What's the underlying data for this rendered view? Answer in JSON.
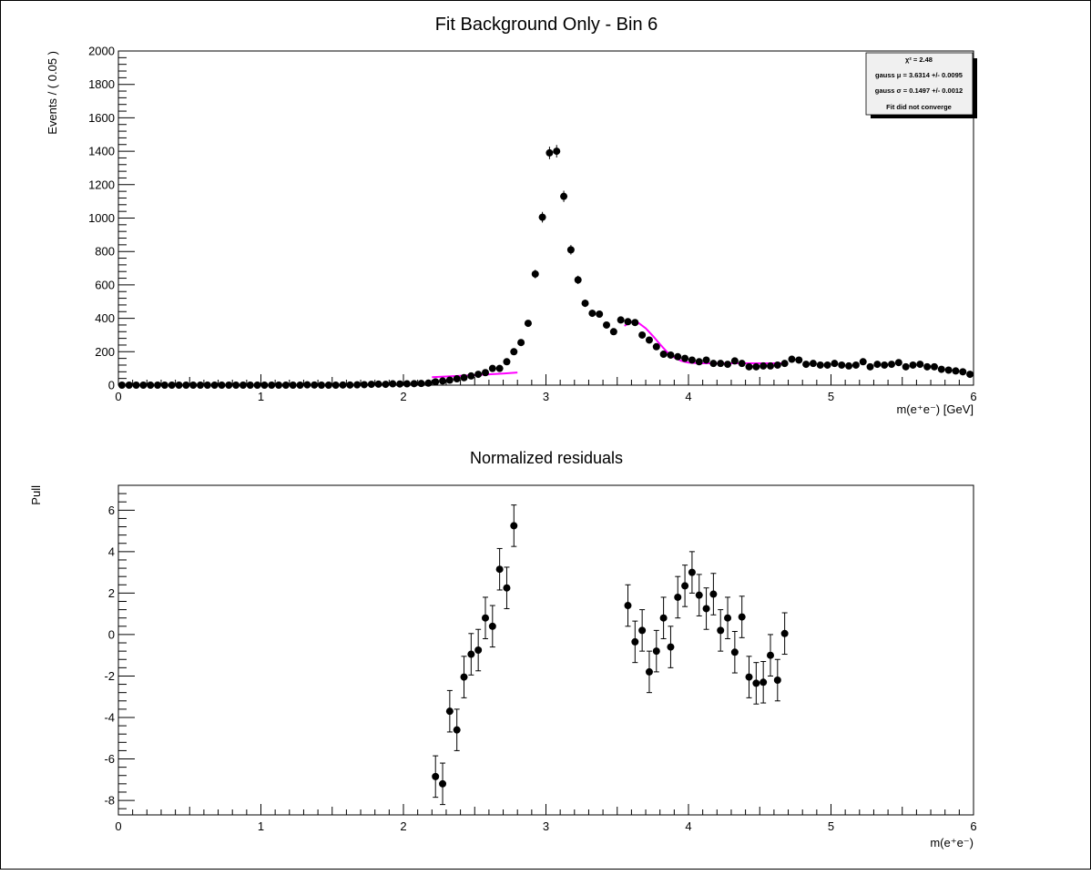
{
  "chart_data": [
    {
      "type": "scatter",
      "title": "Fit Background Only - Bin 6",
      "xlabel": "m(e⁺e⁻) [GeV]",
      "ylabel": "Events / ( 0.05 )",
      "xlim": [
        0,
        6
      ],
      "ylim": [
        0,
        2000
      ],
      "x_ticks": [
        "0",
        "1",
        "2",
        "3",
        "4",
        "5",
        "6"
      ],
      "y_ticks": [
        "0",
        "200",
        "400",
        "600",
        "800",
        "1000",
        "1200",
        "1400",
        "1600",
        "1800",
        "2000"
      ],
      "grid": false,
      "marker_color": "#000000",
      "fit_color": "#ff00ff",
      "series": [
        {
          "values": [
            [
              0.025,
              0
            ],
            [
              0.075,
              0
            ],
            [
              0.125,
              0
            ],
            [
              0.175,
              0
            ],
            [
              0.225,
              0
            ],
            [
              0.275,
              0
            ],
            [
              0.325,
              0
            ],
            [
              0.375,
              0
            ],
            [
              0.425,
              0
            ],
            [
              0.475,
              0
            ],
            [
              0.525,
              0
            ],
            [
              0.575,
              0
            ],
            [
              0.625,
              0
            ],
            [
              0.675,
              0
            ],
            [
              0.725,
              0
            ],
            [
              0.775,
              0
            ],
            [
              0.825,
              0
            ],
            [
              0.875,
              0
            ],
            [
              0.925,
              0
            ],
            [
              0.975,
              0
            ],
            [
              1.025,
              0
            ],
            [
              1.075,
              0
            ],
            [
              1.125,
              0
            ],
            [
              1.175,
              0
            ],
            [
              1.225,
              0
            ],
            [
              1.275,
              0
            ],
            [
              1.325,
              2
            ],
            [
              1.375,
              1
            ],
            [
              1.425,
              0
            ],
            [
              1.475,
              0
            ],
            [
              1.525,
              0
            ],
            [
              1.575,
              1
            ],
            [
              1.625,
              1
            ],
            [
              1.675,
              2
            ],
            [
              1.725,
              3
            ],
            [
              1.775,
              5
            ],
            [
              1.825,
              6
            ],
            [
              1.875,
              5
            ],
            [
              1.925,
              8
            ],
            [
              1.975,
              7
            ],
            [
              2.025,
              8
            ],
            [
              2.075,
              9
            ],
            [
              2.125,
              10
            ],
            [
              2.175,
              12
            ],
            [
              2.225,
              20
            ],
            [
              2.275,
              25
            ],
            [
              2.325,
              30
            ],
            [
              2.375,
              38
            ],
            [
              2.425,
              45
            ],
            [
              2.475,
              55
            ],
            [
              2.525,
              65
            ],
            [
              2.575,
              75
            ],
            [
              2.625,
              100
            ],
            [
              2.675,
              100
            ],
            [
              2.725,
              140
            ],
            [
              2.775,
              200
            ],
            [
              2.825,
              255
            ],
            [
              2.875,
              370
            ],
            [
              2.925,
              665
            ],
            [
              2.975,
              1005
            ],
            [
              3.025,
              1390
            ],
            [
              3.075,
              1400
            ],
            [
              3.125,
              1130
            ],
            [
              3.175,
              810
            ],
            [
              3.225,
              630
            ],
            [
              3.275,
              490
            ],
            [
              3.325,
              430
            ],
            [
              3.375,
              425
            ],
            [
              3.425,
              360
            ],
            [
              3.475,
              320
            ],
            [
              3.525,
              390
            ],
            [
              3.575,
              380
            ],
            [
              3.625,
              375
            ],
            [
              3.675,
              300
            ],
            [
              3.725,
              270
            ],
            [
              3.775,
              230
            ],
            [
              3.825,
              185
            ],
            [
              3.875,
              180
            ],
            [
              3.925,
              170
            ],
            [
              3.975,
              160
            ],
            [
              4.025,
              150
            ],
            [
              4.075,
              140
            ],
            [
              4.125,
              150
            ],
            [
              4.175,
              130
            ],
            [
              4.225,
              130
            ],
            [
              4.275,
              125
            ],
            [
              4.325,
              145
            ],
            [
              4.375,
              130
            ],
            [
              4.425,
              110
            ],
            [
              4.475,
              110
            ],
            [
              4.525,
              115
            ],
            [
              4.575,
              115
            ],
            [
              4.625,
              120
            ],
            [
              4.675,
              130
            ],
            [
              4.725,
              155
            ],
            [
              4.775,
              150
            ],
            [
              4.825,
              125
            ],
            [
              4.875,
              130
            ],
            [
              4.925,
              120
            ],
            [
              4.975,
              120
            ],
            [
              5.025,
              130
            ],
            [
              5.075,
              120
            ],
            [
              5.125,
              115
            ],
            [
              5.175,
              120
            ],
            [
              5.225,
              140
            ],
            [
              5.275,
              110
            ],
            [
              5.325,
              125
            ],
            [
              5.375,
              120
            ],
            [
              5.425,
              125
            ],
            [
              5.475,
              135
            ],
            [
              5.525,
              110
            ],
            [
              5.575,
              120
            ],
            [
              5.625,
              125
            ],
            [
              5.675,
              110
            ],
            [
              5.725,
              110
            ],
            [
              5.775,
              95
            ],
            [
              5.825,
              90
            ],
            [
              5.875,
              85
            ],
            [
              5.925,
              80
            ],
            [
              5.975,
              65
            ]
          ]
        }
      ],
      "fit_curves": [
        [
          [
            2.2,
            48
          ],
          [
            2.3,
            52
          ],
          [
            2.4,
            56
          ],
          [
            2.5,
            60
          ],
          [
            2.6,
            65
          ],
          [
            2.7,
            70
          ],
          [
            2.8,
            76
          ]
        ],
        [
          [
            3.55,
            355
          ],
          [
            3.6,
            378
          ],
          [
            3.65,
            372
          ],
          [
            3.7,
            340
          ],
          [
            3.75,
            295
          ],
          [
            3.8,
            245
          ],
          [
            3.85,
            198
          ],
          [
            3.9,
            165
          ],
          [
            3.95,
            145
          ],
          [
            4.0,
            135
          ],
          [
            4.05,
            132
          ],
          [
            4.1,
            131
          ],
          [
            4.2,
            131
          ],
          [
            4.4,
            131
          ],
          [
            4.6,
            131
          ],
          [
            4.7,
            131
          ]
        ]
      ],
      "stats_box": {
        "lines": [
          "χ² = 2.48",
          "gauss μ = 3.6314 +/- 0.0095",
          "gauss σ = 0.1497 +/- 0.0012",
          "Fit did not converge"
        ]
      }
    },
    {
      "type": "scatter",
      "title": "Normalized residuals",
      "xlabel": "m(e⁺e⁻)",
      "ylabel": "Pull",
      "xlim": [
        0,
        6
      ],
      "ylim": [
        -8.7,
        7.2
      ],
      "x_ticks": [
        "0",
        "1",
        "2",
        "3",
        "4",
        "5",
        "6"
      ],
      "y_ticks": [
        "-8",
        "-6",
        "-4",
        "-2",
        "0",
        "2",
        "4",
        "6"
      ],
      "y_tick_values": [
        -8,
        -6,
        -4,
        -2,
        0,
        2,
        4,
        6
      ],
      "grid": false,
      "marker_color": "#000000",
      "series": [
        {
          "values": [
            [
              2.225,
              -6.85
            ],
            [
              2.275,
              -7.2
            ],
            [
              2.325,
              -3.7
            ],
            [
              2.375,
              -4.6
            ],
            [
              2.425,
              -2.05
            ],
            [
              2.475,
              -0.95
            ],
            [
              2.525,
              -0.75
            ],
            [
              2.575,
              0.8
            ],
            [
              2.625,
              0.4
            ],
            [
              2.675,
              3.15
            ],
            [
              2.725,
              2.25
            ],
            [
              2.775,
              5.25
            ],
            [
              3.575,
              1.4
            ],
            [
              3.625,
              -0.35
            ],
            [
              3.675,
              0.2
            ],
            [
              3.725,
              -1.8
            ],
            [
              3.775,
              -0.8
            ],
            [
              3.825,
              0.8
            ],
            [
              3.875,
              -0.6
            ],
            [
              3.925,
              1.8
            ],
            [
              3.975,
              2.35
            ],
            [
              4.025,
              3.0
            ],
            [
              4.075,
              1.9
            ],
            [
              4.125,
              1.25
            ],
            [
              4.175,
              1.95
            ],
            [
              4.225,
              0.2
            ],
            [
              4.275,
              0.8
            ],
            [
              4.325,
              -0.85
            ],
            [
              4.375,
              0.85
            ],
            [
              4.425,
              -2.05
            ],
            [
              4.475,
              -2.35
            ],
            [
              4.525,
              -2.3
            ],
            [
              4.575,
              -1.0
            ],
            [
              4.625,
              -2.2
            ],
            [
              4.675,
              0.05
            ]
          ]
        }
      ]
    }
  ]
}
